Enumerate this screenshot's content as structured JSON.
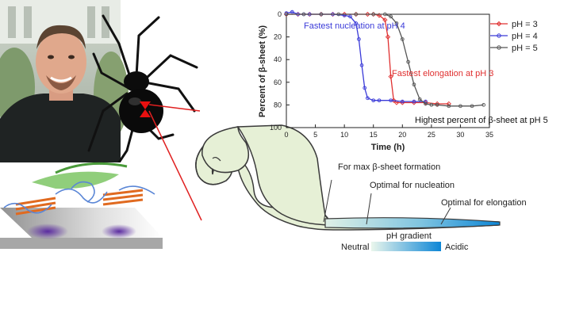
{
  "chart_data": {
    "type": "scatter",
    "xlabel": "Time (h)",
    "ylabel": "Percent of β-sheet (%)",
    "xlim": [
      0,
      35
    ],
    "ylim": [
      100,
      0
    ],
    "y_inverted": true,
    "x_ticks": [
      "0",
      "5",
      "10",
      "15",
      "20",
      "25",
      "30",
      "35"
    ],
    "y_ticks": [
      "0",
      "20",
      "40",
      "60",
      "80",
      "100"
    ],
    "legend_position": "top-right",
    "series": [
      {
        "name": "pH = 3",
        "color": "#e03030",
        "marker": "diamond",
        "x": [
          0,
          2,
          4,
          6,
          8,
          10,
          12,
          14,
          15,
          16,
          17,
          17.5,
          18,
          18.5,
          19,
          20,
          22,
          24,
          26,
          28
        ],
        "y": [
          0,
          0,
          0,
          0,
          0,
          0,
          0,
          0,
          0,
          1,
          5,
          20,
          55,
          76,
          78,
          78,
          78,
          78,
          79,
          79
        ]
      },
      {
        "name": "pH = 4",
        "color": "#3a3ad8",
        "marker": "circle",
        "x": [
          0,
          1,
          2,
          3,
          4,
          6,
          8,
          10,
          11,
          12,
          12.5,
          13,
          13.5,
          14,
          15,
          16,
          18,
          20,
          22,
          24
        ],
        "y": [
          -1,
          -2,
          0,
          0,
          0,
          0,
          0,
          1,
          2,
          8,
          22,
          45,
          65,
          74,
          76,
          76,
          76,
          77,
          77,
          77
        ]
      },
      {
        "name": "pH = 5",
        "color": "#555555",
        "marker": "circle",
        "x": [
          0,
          3,
          6,
          9,
          12,
          15,
          17,
          18,
          19,
          20,
          21,
          22,
          23,
          24,
          25,
          26,
          28,
          30,
          32,
          34
        ],
        "y": [
          0,
          0,
          0,
          0,
          0,
          0,
          0,
          2,
          8,
          22,
          42,
          62,
          75,
          79,
          80,
          80,
          81,
          81,
          81,
          80
        ]
      }
    ],
    "annotations": [
      {
        "text": "Fastest nucleation at pH 4",
        "color": "#3a3ad8"
      },
      {
        "text": "Fastest elongation at pH 3",
        "color": "#e03030"
      },
      {
        "text": "Highest percent of β-sheet at pH 5",
        "color": "#111111"
      }
    ]
  },
  "gland": {
    "labels": [
      "For max β-sheet formation",
      "Optimal for nucleation",
      "Optimal for elongation"
    ],
    "gradient_title": "pH gradient",
    "gradient_left": "Neutral",
    "gradient_right": "Acidic",
    "gradient_colors": [
      "#eaf6ec",
      "#0d86d6"
    ]
  },
  "colors": {
    "gland_fill": "#e6f0d6",
    "gland_stroke": "#3a3a3a",
    "pointer_line": "#e02020",
    "spider_mark": "#e81010"
  }
}
